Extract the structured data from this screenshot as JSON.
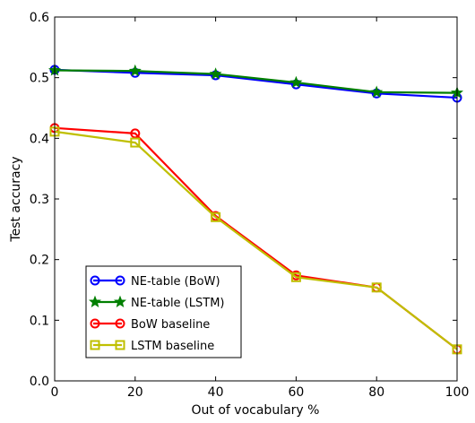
{
  "chart_data": {
    "type": "line",
    "xlabel": "Out of vocabulary %",
    "ylabel": "Test accuracy",
    "xlim": [
      0,
      100
    ],
    "ylim": [
      0.0,
      0.6
    ],
    "xticks": [
      "0",
      "20",
      "40",
      "60",
      "80",
      "100"
    ],
    "yticks": [
      "0.0",
      "0.1",
      "0.2",
      "0.3",
      "0.4",
      "0.5",
      "0.6"
    ],
    "grid": false,
    "legend_position": "lower-left",
    "x": [
      0,
      20,
      40,
      60,
      80,
      100
    ],
    "series": [
      {
        "name": "NE-table (BoW)",
        "color": "#0000ff",
        "marker": "circle",
        "values": [
          0.513,
          0.508,
          0.504,
          0.489,
          0.474,
          0.467
        ]
      },
      {
        "name": "NE-table (LSTM)",
        "color": "#007f00",
        "marker": "star",
        "values": [
          0.512,
          0.511,
          0.506,
          0.492,
          0.476,
          0.475
        ]
      },
      {
        "name": "BoW baseline",
        "color": "#ff0000",
        "marker": "circle",
        "values": [
          0.417,
          0.408,
          0.272,
          0.174,
          0.154,
          0.052
        ]
      },
      {
        "name": "LSTM baseline",
        "color": "#bfbf00",
        "marker": "square",
        "values": [
          0.411,
          0.393,
          0.27,
          0.171,
          0.154,
          0.052
        ]
      }
    ]
  }
}
